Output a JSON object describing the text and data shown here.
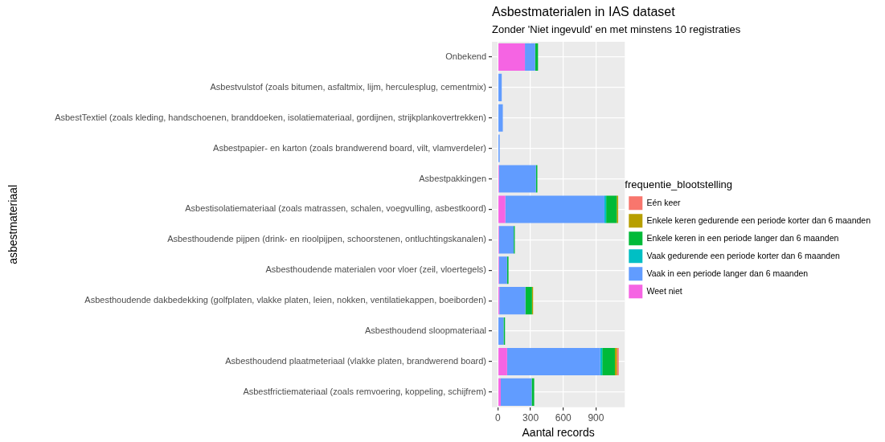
{
  "chart_data": {
    "type": "bar",
    "orientation": "horizontal",
    "stacked": true,
    "title": "Asbestmaterialen in IAS dataset",
    "subtitle": "Zonder 'Niet ingevuld' en met minstens 10 registraties",
    "xlabel": "Aantal records",
    "ylabel": "asbestmateriaal",
    "legend_title": "frequentie_blootstelling",
    "categories": [
      "Onbekend",
      "Asbestvulstof (zoals bitumen, asfaltmix, lijm, herculesplug, cementmix)",
      "AsbestTextiel (zoals kleding, handschoenen, branddoeken, isolatiemateriaal, gordijnen, strijkplankovertrekken)",
      "Asbestpapier- en karton (zoals brandwerend board, vilt, vlamverdeler)",
      "Asbestpakkingen",
      "Asbestisolatiemateriaal (zoals matrassen, schalen, voegvulling, asbestkoord)",
      "Asbesthoudende pijpen (drink- en rioolpijpen, schoorstenen, ontluchtingskanalen)",
      "Asbesthoudende materialen voor vloer (zeil, vloertegels)",
      "Asbesthoudende dakbedekking (golfplaten, vlakke platen, leien, nokken, ventilatiekappen, boeiborden)",
      "Asbesthoudend sloopmateriaal",
      "Asbesthoudend plaatmeteriaal (vlakke platen, brandwerend board)",
      "Asbestfrictiemateriaal (zoals remvoering, koppeling, schijfrem)"
    ],
    "series": [
      {
        "name": "Weet niet",
        "color": "#f564e3",
        "values": [
          248,
          null,
          null,
          null,
          10,
          68,
          10,
          10,
          13,
          null,
          84,
          26
        ]
      },
      {
        "name": "Vaak in een periode langer dan 6 maanden",
        "color": "#619cff",
        "values": [
          94,
          35,
          45,
          16,
          339,
          910,
          135,
          74,
          239,
          52,
          855,
          284
        ]
      },
      {
        "name": "Vaak gedurende een periode korter dan 6 maanden",
        "color": "#00bfc4",
        "values": [
          null,
          null,
          null,
          null,
          null,
          16,
          null,
          null,
          null,
          null,
          19,
          null
        ]
      },
      {
        "name": "Enkele keren in een periode langer dan 6 maanden",
        "color": "#00ba38",
        "values": [
          26,
          null,
          null,
          null,
          13,
          97,
          10,
          13,
          61,
          13,
          116,
          23
        ]
      },
      {
        "name": "Enkele keren gedurende een periode korter dan 6 maanden",
        "color": "#b79f00",
        "values": [
          null,
          null,
          null,
          null,
          null,
          13,
          null,
          null,
          10,
          null,
          19,
          null
        ]
      },
      {
        "name": "Eén keer",
        "color": "#f8766d",
        "values": [
          null,
          null,
          null,
          null,
          null,
          null,
          null,
          null,
          null,
          null,
          16,
          null
        ]
      }
    ],
    "xlim": [
      -55,
      1165
    ],
    "xticks": [
      0,
      300,
      600,
      900
    ],
    "grid": true,
    "legend": "right"
  }
}
